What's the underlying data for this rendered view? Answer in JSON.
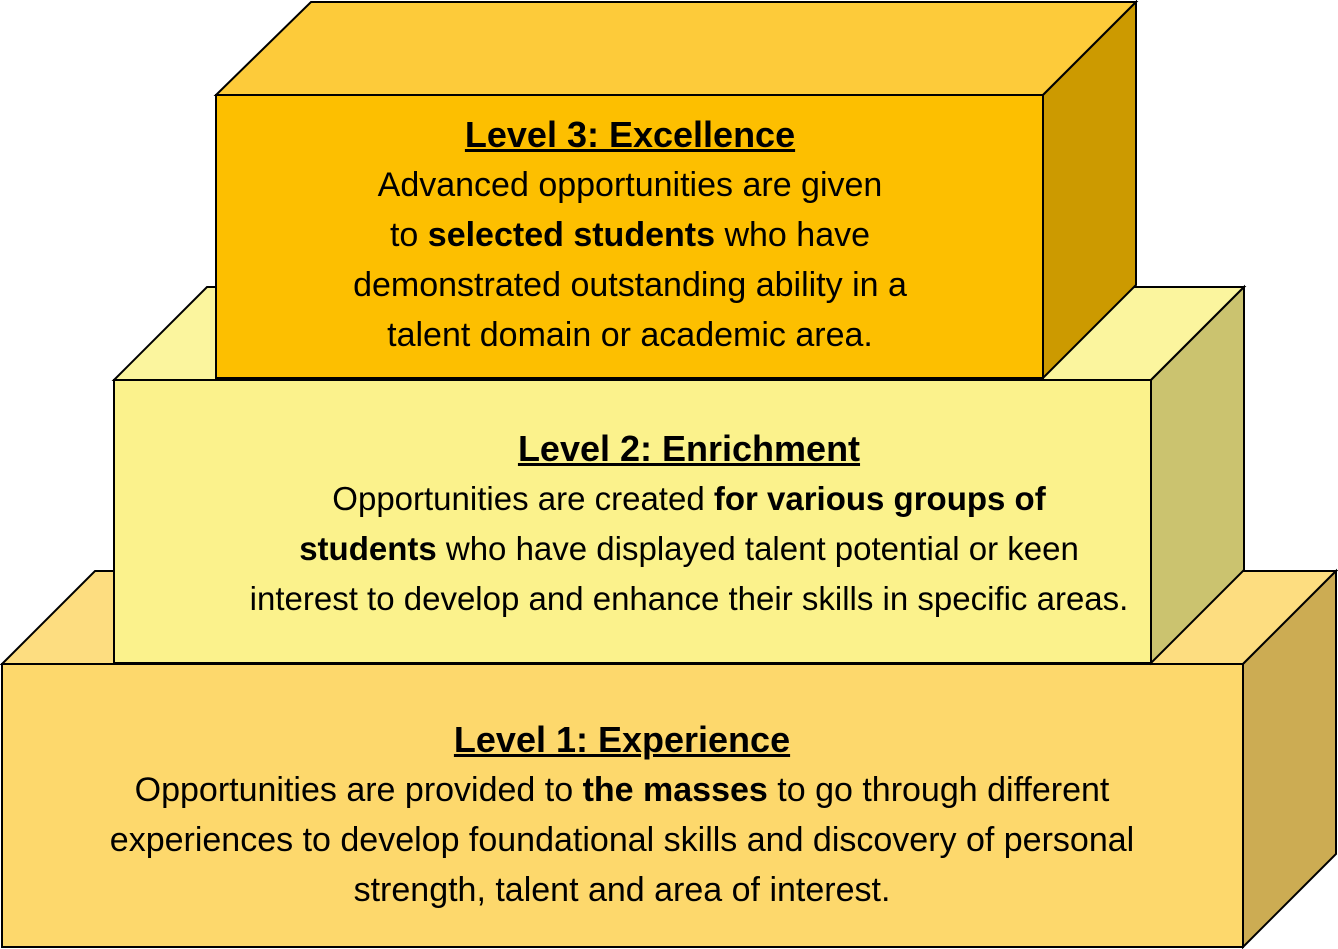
{
  "colors": {
    "level3_front": "#fdbf00",
    "level3_top": "#fdcb3a",
    "level3_side": "#cc9a00",
    "level2_front": "#fbf28c",
    "level2_top": "#fbf59e",
    "level2_side": "#cbc36f",
    "level1_front": "#fdd86c",
    "level1_top": "#fddd80",
    "level1_side": "#ccac53",
    "outline": "#000000"
  },
  "levels": {
    "level3": {
      "title": "Level 3: Excellence",
      "l1": "Advanced opportunities are given",
      "l2_pre": "to ",
      "l2_bold": "selected students",
      "l2_post": " who have",
      "l3": "demonstrated outstanding ability in a",
      "l4": "talent domain or academic area."
    },
    "level2": {
      "title": "Level 2: Enrichment",
      "l1_pre": "Opportunities are created ",
      "l1_bold": "for various groups of",
      "l2_bold": "students",
      "l2_post": " who have displayed talent potential or keen",
      "l3": "interest to develop and enhance their skills in specific areas."
    },
    "level1": {
      "title": "Level 1: Experience",
      "l1_pre": "Opportunities are provided to ",
      "l1_bold": "the masses",
      "l1_post": " to go through different",
      "l2": "experiences to develop foundational skills and discovery of personal",
      "l3": "strength, talent and area of interest."
    }
  }
}
